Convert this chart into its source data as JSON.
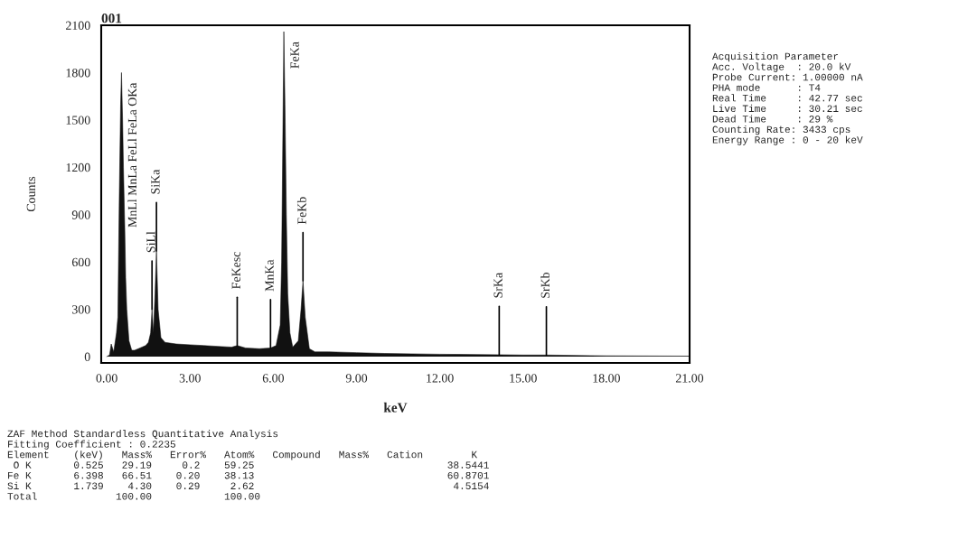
{
  "chart_data": {
    "type": "area",
    "title": "001",
    "xlabel": "keV",
    "ylabel": "Counts",
    "series": [
      {
        "color": "#111111",
        "x": [
          0.0,
          0.1,
          0.16,
          0.25,
          0.35,
          0.4,
          0.45,
          0.5,
          0.53,
          0.57,
          0.6,
          0.65,
          0.68,
          0.72,
          0.76,
          0.8,
          0.9,
          1.0,
          1.2,
          1.4,
          1.5,
          1.58,
          1.63,
          1.68,
          1.74,
          1.79,
          1.85,
          1.95,
          2.1,
          2.5,
          3.0,
          3.5,
          4.0,
          4.5,
          4.7,
          5.0,
          5.5,
          5.9,
          6.1,
          6.25,
          6.3,
          6.35,
          6.38,
          6.42,
          6.47,
          6.52,
          6.6,
          6.7,
          6.9,
          7.0,
          7.07,
          7.15,
          7.3,
          7.5,
          8.0,
          9.0,
          10.0,
          12.0,
          14.14,
          15.0,
          15.84,
          18.0,
          21.0
        ],
        "values": [
          0,
          10,
          80,
          30,
          150,
          250,
          1000,
          1600,
          1800,
          1500,
          1200,
          800,
          500,
          300,
          200,
          100,
          40,
          40,
          55,
          70,
          90,
          150,
          300,
          150,
          400,
          670,
          300,
          120,
          90,
          80,
          75,
          70,
          65,
          60,
          70,
          55,
          50,
          55,
          70,
          200,
          600,
          1500,
          2060,
          1600,
          900,
          400,
          150,
          60,
          100,
          300,
          480,
          250,
          50,
          30,
          30,
          25,
          20,
          15,
          12,
          10,
          10,
          5,
          3
        ]
      }
    ],
    "xlim": [
      -0.2,
      21.0
    ],
    "ylim": [
      -40,
      2100
    ],
    "xticks": [
      {
        "value": 0,
        "label": "0.00"
      },
      {
        "value": 3,
        "label": "3.00"
      },
      {
        "value": 6,
        "label": "6.00"
      },
      {
        "value": 9,
        "label": "9.00"
      },
      {
        "value": 12,
        "label": "12.00"
      },
      {
        "value": 15,
        "label": "15.00"
      },
      {
        "value": 18,
        "label": "18.00"
      },
      {
        "value": 21,
        "label": "21.00"
      }
    ],
    "yticks": [
      0,
      300,
      600,
      900,
      1200,
      1500,
      1800,
      2100
    ],
    "grid": false,
    "annotations": [
      "Acquisition Parameter\nAcc. Voltage  : 20.0 kV\nProbe Current: 1.00000 nA\nPHA mode      : T4\nReal Time     : 42.77 sec\nLive Time     : 30.21 sec\nDead Time     : 29 %\nCounting Rate: 3433 cps\nEnergy Range : 0 - 20 keV",
      "ZAF Method Standardless Quantitative Analysis\nFitting Coefficient : 0.2235\nElement    (keV)   Mass%   Error%   Atom%   Compound   Mass%   Cation        K\n O K       0.525   29.19     0.2    59.25                                38.5441\nFe K       6.398   66.51    0.20    38.13                                60.8701\nSi K       1.739    4.30    0.29     2.62                                 4.5154\nTotal             100.00            100.00",
      {
        "text": "MnLl MnLa FeLl FeLa OKa",
        "x": 0.53,
        "y": 1800
      },
      {
        "text": "SiLl",
        "x": 1.63,
        "y": 300
      },
      {
        "text": "SiKa",
        "x": 1.79,
        "y": 670
      },
      {
        "text": "FeKesc",
        "x": 4.7,
        "y": 70
      },
      {
        "text": "MnKa",
        "x": 5.9,
        "y": 55
      },
      {
        "text": "FeKa",
        "x": 6.38,
        "y": 2060
      },
      {
        "text": "FeKb",
        "x": 7.07,
        "y": 480
      },
      {
        "text": "SrKa",
        "x": 14.14,
        "y": 12
      },
      {
        "text": "SrKb",
        "x": 15.84,
        "y": 10
      }
    ]
  }
}
